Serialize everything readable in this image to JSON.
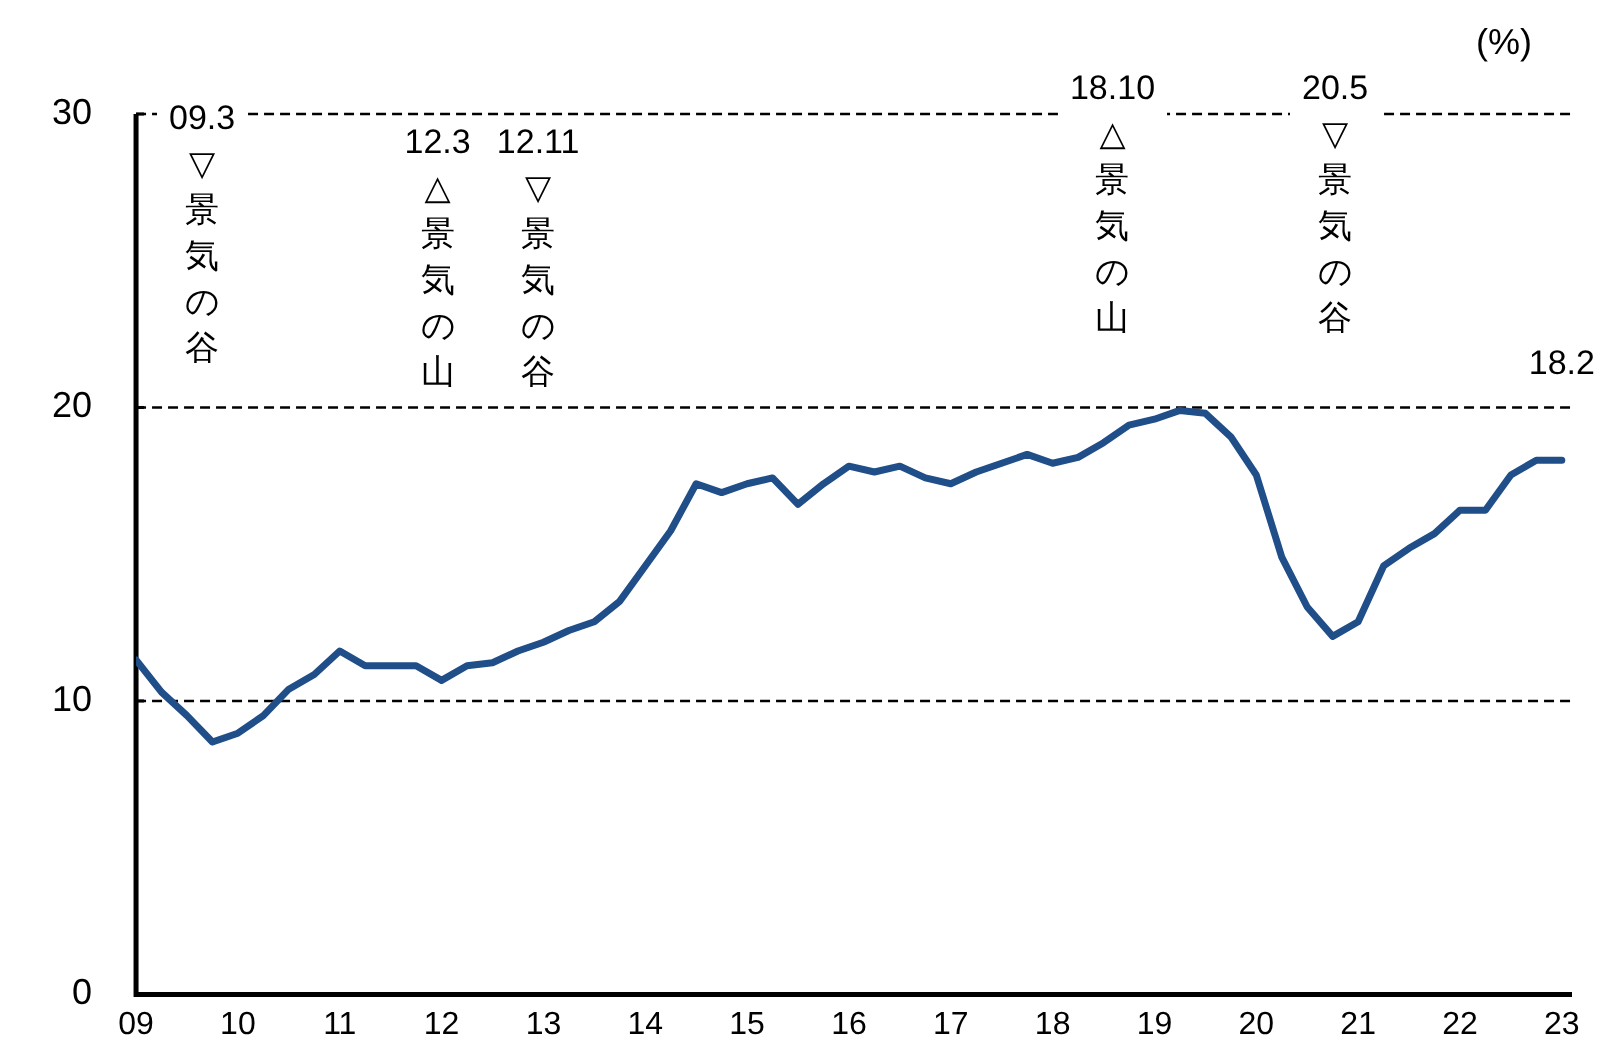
{
  "chart_data": {
    "type": "line",
    "ylabel": "(%)",
    "x": [
      2009,
      2009.25,
      2009.5,
      2009.75,
      2010,
      2010.25,
      2010.5,
      2010.75,
      2011,
      2011.25,
      2011.5,
      2011.75,
      2012,
      2012.25,
      2012.5,
      2012.75,
      2013,
      2013.25,
      2013.5,
      2013.75,
      2014,
      2014.25,
      2014.5,
      2014.75,
      2015,
      2015.25,
      2015.5,
      2015.75,
      2016,
      2016.25,
      2016.5,
      2016.75,
      2017,
      2017.25,
      2017.5,
      2017.75,
      2018,
      2018.25,
      2018.5,
      2018.75,
      2019,
      2019.25,
      2019.5,
      2019.75,
      2020,
      2020.25,
      2020.5,
      2020.75,
      2021,
      2021.25,
      2021.5,
      2021.75,
      2022,
      2022.25,
      2022.5,
      2022.75,
      2023
    ],
    "series": [
      {
        "color": "#1f4e89",
        "value_labels": [
          null,
          null,
          null,
          null,
          null,
          null,
          null,
          null,
          null,
          null,
          null,
          null,
          null,
          null,
          null,
          null,
          null,
          null,
          null,
          null,
          null,
          null,
          null,
          null,
          null,
          null,
          null,
          null,
          null,
          null,
          null,
          null,
          null,
          null,
          null,
          null,
          null,
          null,
          null,
          null,
          null,
          null,
          null,
          null,
          null,
          null,
          null,
          null,
          null,
          null,
          null,
          null,
          null,
          null,
          null,
          null,
          "18.2"
        ],
        "values": [
          11.4,
          10.3,
          9.5,
          8.6,
          8.9,
          9.5,
          10.4,
          10.9,
          11.7,
          11.2,
          11.2,
          11.2,
          10.7,
          11.2,
          11.3,
          11.7,
          12.0,
          12.4,
          12.7,
          13.4,
          14.6,
          15.8,
          17.4,
          17.1,
          17.4,
          17.6,
          16.7,
          17.4,
          18.0,
          17.8,
          18.0,
          17.6,
          17.4,
          17.8,
          18.1,
          18.4,
          18.1,
          18.3,
          18.8,
          19.4,
          19.6,
          19.9,
          19.8,
          19.0,
          17.7,
          14.9,
          13.2,
          12.2,
          12.7,
          14.6,
          15.2,
          15.7,
          16.5,
          16.5,
          17.7,
          18.2,
          18.2
        ]
      }
    ],
    "xlim": [
      2009,
      2023.1
    ],
    "xticks": [
      {
        "value": 2009,
        "label": "09"
      },
      {
        "value": 2010,
        "label": "10"
      },
      {
        "value": 2011,
        "label": "11"
      },
      {
        "value": 2012,
        "label": "12"
      },
      {
        "value": 2013,
        "label": "13"
      },
      {
        "value": 2014,
        "label": "14"
      },
      {
        "value": 2015,
        "label": "15"
      },
      {
        "value": 2016,
        "label": "16"
      },
      {
        "value": 2017,
        "label": "17"
      },
      {
        "value": 2018,
        "label": "18"
      },
      {
        "value": 2019,
        "label": "19"
      },
      {
        "value": 2020,
        "label": "20"
      },
      {
        "value": 2021,
        "label": "21"
      },
      {
        "value": 2022,
        "label": "22"
      },
      {
        "value": 2023,
        "label": "23"
      }
    ],
    "ylim": [
      0,
      30
    ],
    "yticks": [
      0,
      10,
      20,
      30
    ],
    "grid": "y",
    "legend": false,
    "marker": "none",
    "line_style": "solid",
    "annotations": [
      "09.3 ▽景気の谷",
      "12.3 △景気の山",
      "12.11 ▽景気の谷",
      "18.10 △景気の山",
      "20.5 ▽景気の谷"
    ]
  }
}
